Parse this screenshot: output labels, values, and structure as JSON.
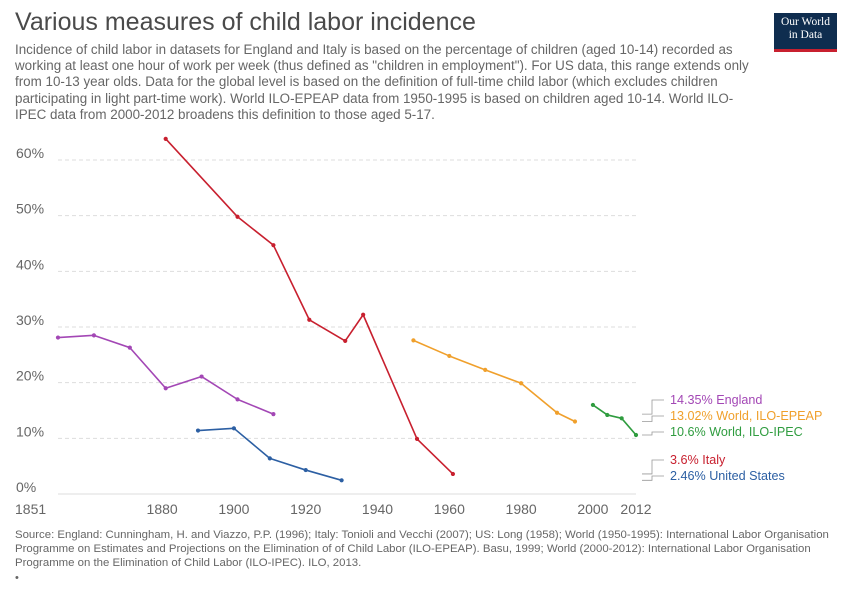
{
  "header": {
    "title": "Various measures of child labor incidence",
    "subtitle": "Incidence of child labor in datasets for England and Italy is based on the percentage of children (aged 10-14) recorded as working at least one hour of work per week (thus defined as \"children in employment\"). For US data, this range extends only from 10-13 year olds. Data for the global level is based on the definition of full-time child labor (which excludes children participating in light part-time work). World ILO-EPEAP data from 1950-1995 is based on children aged 10-14. World ILO-IPEC data from 2000-2012 broadens this definition to those aged 5-17.",
    "logo_line1": "Our World",
    "logo_line2": "in Data"
  },
  "footer": {
    "source": "Source: England: Cunningham, H. and Viazzo, P.P. (1996); Italy: Tonioli and Vecchi (2007); US: Long (1958); World (1950-1995): International Labor Organisation Programme on Estimates and Projections on the Elimination of of Child Labor (ILO-EPEAP). Basu, 1999; World (2000-2012): International Labor Organisation Programme on the Elimination of Child Labor (ILO-IPEC). ILO, 2013.",
    "bullet": "•"
  },
  "chart_data": {
    "type": "line",
    "title": "Various measures of child labor incidence",
    "xlim": [
      1851,
      2012
    ],
    "ylim": [
      0,
      60
    ],
    "x_ticks": [
      1851,
      1880,
      1900,
      1920,
      1940,
      1960,
      1980,
      2000,
      2012
    ],
    "y_ticks": [
      0,
      10,
      20,
      30,
      40,
      50,
      60
    ],
    "y_tick_format": "%",
    "grid": "horizontal dashed",
    "legend": "right end labels",
    "series": [
      {
        "name": "England",
        "end_label": "14.35% England",
        "color": "#a347b5",
        "x": [
          1851,
          1861,
          1871,
          1881,
          1891,
          1901,
          1911
        ],
        "y": [
          28.1,
          28.5,
          26.3,
          19.0,
          21.1,
          17.0,
          14.35
        ]
      },
      {
        "name": "Italy",
        "end_label": "3.6% Italy",
        "color": "#c8202f",
        "x": [
          1881,
          1901,
          1911,
          1921,
          1931,
          1936,
          1951,
          1961
        ],
        "y": [
          63.8,
          49.8,
          44.7,
          31.3,
          27.5,
          32.2,
          9.9,
          3.6
        ]
      },
      {
        "name": "United States",
        "end_label": "2.46% United States",
        "color": "#2c5fa3",
        "x": [
          1890,
          1900,
          1910,
          1920,
          1930
        ],
        "y": [
          11.4,
          11.8,
          6.4,
          4.3,
          2.46
        ]
      },
      {
        "name": "World, ILO-EPEAP",
        "end_label": "13.02% World, ILO-EPEAP",
        "color": "#f0a02c",
        "x": [
          1950,
          1960,
          1970,
          1980,
          1990,
          1995
        ],
        "y": [
          27.6,
          24.8,
          22.3,
          19.9,
          14.6,
          13.02
        ]
      },
      {
        "name": "World, ILO-IPEC",
        "end_label": "10.6% World, ILO-IPEC",
        "color": "#2f9c3f",
        "x": [
          2000,
          2004,
          2008,
          2012
        ],
        "y": [
          16.0,
          14.2,
          13.6,
          10.6
        ]
      }
    ]
  }
}
